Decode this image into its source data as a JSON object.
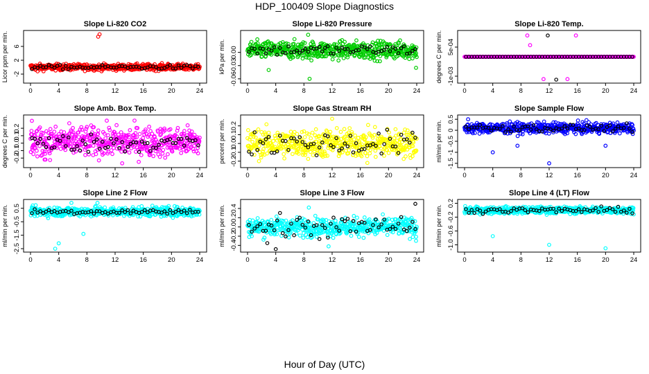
{
  "figure": {
    "title": "HDP_100409  Slope Diagnostics",
    "xlabel": "Hour of Day (UTC)"
  },
  "chart_data": [
    {
      "type": "scatter",
      "title": "Slope Li-820 CO2",
      "ylabel": "Licor ppm per min.",
      "xlim": [
        0,
        24
      ],
      "ylim": [
        -4,
        10
      ],
      "xticks": [
        "0",
        "4",
        "8",
        "12",
        "16",
        "20",
        "24"
      ],
      "yticks": [
        -2,
        2,
        6
      ],
      "ytick_labels": [
        "-2",
        "2",
        "6"
      ],
      "points_color": "#ff0000",
      "center": 0,
      "spread": 0.45,
      "black_center": 0,
      "black_spread": 0.3,
      "outliers": [
        [
          9.8,
          9.5
        ],
        [
          9.6,
          8.8
        ],
        [
          1.0,
          -1.2
        ],
        [
          19.5,
          1.0
        ]
      ]
    },
    {
      "type": "scatter",
      "title": "Slope Li-820 Pressure",
      "ylabel": "kPa per min.",
      "xlim": [
        0,
        24
      ],
      "ylim": [
        -0.065,
        0.045
      ],
      "xticks": [
        "0",
        "4",
        "8",
        "12",
        "16",
        "20",
        "24"
      ],
      "yticks": [
        -0.06,
        -0.03,
        0.0
      ],
      "ytick_labels": [
        "-0.06",
        "-0.03",
        "0.00"
      ],
      "points_color": "#00cc00",
      "center": 0.005,
      "spread": 0.01,
      "black_center": 0.005,
      "black_spread": 0.006,
      "outliers": [
        [
          8.6,
          0.04
        ],
        [
          8.8,
          -0.06
        ],
        [
          3.0,
          -0.04
        ],
        [
          23.9,
          -0.035
        ]
      ]
    },
    {
      "type": "scatter",
      "title": "Slope Li-820 Temp.",
      "ylabel": "degrees C per min.",
      "xlim": [
        0,
        24
      ],
      "ylim": [
        -0.00125,
        0.00125
      ],
      "xticks": [
        "0",
        "4",
        "8",
        "12",
        "16",
        "20",
        "24"
      ],
      "yticks": [
        -0.001,
        0.0005
      ],
      "ytick_labels": [
        "-1e-03",
        "5e-04"
      ],
      "points_color": "#ff00ff",
      "center": 0,
      "spread": 0.0,
      "black_center": 0,
      "black_spread": 0.0,
      "outliers": [
        [
          9.3,
          0.0006
        ],
        [
          11.2,
          -0.00115
        ],
        [
          14.6,
          -0.00115
        ],
        [
          15.8,
          0.0011
        ],
        [
          8.9,
          0.0011
        ]
      ],
      "black_outliers": [
        [
          11.8,
          0.0011
        ],
        [
          13.0,
          -0.00118
        ]
      ]
    },
    {
      "type": "scatter",
      "title": "Slope Amb. Box Temp.",
      "ylabel": "degrees C per min.",
      "xlim": [
        0,
        24
      ],
      "ylim": [
        -0.3,
        0.35
      ],
      "xticks": [
        "0",
        "4",
        "8",
        "12",
        "16",
        "20",
        "24"
      ],
      "yticks": [
        -0.2,
        -0.1,
        0.0,
        0.1,
        0.2
      ],
      "ytick_labels": [
        "-0.2",
        "-0.1",
        "0.0",
        "0.1",
        "0.2"
      ],
      "points_color": "#ff00ff",
      "center": 0.02,
      "spread": 0.1,
      "black_center": 0.0,
      "black_spread": 0.06,
      "outliers": [
        [
          0.2,
          0.3
        ],
        [
          2.0,
          -0.22
        ],
        [
          13.0,
          -0.27
        ]
      ]
    },
    {
      "type": "scatter",
      "title": "Slope Gas Stream RH",
      "ylabel": "percent per min.",
      "xlim": [
        0,
        24
      ],
      "ylim": [
        -0.25,
        0.3
      ],
      "xticks": [
        "0",
        "4",
        "8",
        "12",
        "16",
        "20",
        "24"
      ],
      "yticks": [
        -0.2,
        -0.1,
        0.0,
        0.1,
        0.2
      ],
      "ytick_labels": [
        "-0.2",
        "-0.1",
        "0.0",
        "0.1",
        "0.2"
      ],
      "points_color": "#ffff00",
      "center": 0.0,
      "spread": 0.08,
      "black_center": 0.0,
      "black_spread": 0.07,
      "outliers": [
        [
          12.0,
          0.28
        ],
        [
          17.0,
          -0.22
        ]
      ]
    },
    {
      "type": "scatter",
      "title": "Slope Sample Flow",
      "ylabel": "ml/min per min.",
      "xlim": [
        0,
        24
      ],
      "ylim": [
        -1.6,
        0.6
      ],
      "xticks": [
        "0",
        "4",
        "8",
        "12",
        "16",
        "20",
        "24"
      ],
      "yticks": [
        -1.5,
        -1.0,
        -0.5,
        0.0,
        0.5
      ],
      "ytick_labels": [
        "-1.5",
        "-1",
        "-0.5",
        "0",
        "0.5"
      ],
      "points_color": "#0000ff",
      "center": 0.1,
      "spread": 0.12,
      "black_center": 0.1,
      "black_spread": 0.08,
      "outliers": [
        [
          4.0,
          -1.0
        ],
        [
          12.0,
          -1.5
        ],
        [
          7.5,
          -0.7
        ],
        [
          20.0,
          -0.7
        ],
        [
          0.5,
          0.5
        ]
      ]
    },
    {
      "type": "scatter",
      "title": "Slope Line 2 Flow",
      "ylabel": "ml/min per min.",
      "xlim": [
        0,
        24
      ],
      "ylim": [
        -2.6,
        1.0
      ],
      "xticks": [
        "0",
        "4",
        "8",
        "12",
        "16",
        "20",
        "24"
      ],
      "yticks": [
        -2.5,
        -1.5,
        -0.5,
        0.5
      ],
      "ytick_labels": [
        "-2.5",
        "-1.5",
        "-0.5",
        "0.5"
      ],
      "points_color": "#00ffff",
      "center": 0.25,
      "spread": 0.18,
      "black_center": 0.25,
      "black_spread": 0.1,
      "outliers": [
        [
          3.5,
          -2.5
        ],
        [
          4.0,
          -2.1
        ],
        [
          7.5,
          -1.4
        ],
        [
          5.8,
          0.9
        ],
        [
          9.5,
          0.9
        ]
      ]
    },
    {
      "type": "scatter",
      "title": "Slope Line 3 Flow",
      "ylabel": "ml/min per min.",
      "xlim": [
        0,
        24
      ],
      "ylim": [
        -0.5,
        0.55
      ],
      "xticks": [
        "0",
        "4",
        "8",
        "12",
        "16",
        "20",
        "24"
      ],
      "yticks": [
        -0.4,
        -0.2,
        0.0,
        0.2,
        0.4
      ],
      "ytick_labels": [
        "-0.4",
        "-0.2",
        "0.0",
        "0.2",
        "0.4"
      ],
      "points_color": "#00ffff",
      "center": 0.0,
      "spread": 0.1,
      "black_center": 0.0,
      "black_spread": 0.12,
      "outliers": [
        [
          8.7,
          0.42
        ],
        [
          11.5,
          -0.42
        ],
        [
          23.9,
          -0.3
        ]
      ],
      "black_outliers": [
        [
          4.0,
          -0.48
        ],
        [
          2.8,
          -0.35
        ],
        [
          23.8,
          0.5
        ]
      ]
    },
    {
      "type": "scatter",
      "title": "Slope Line 4 (LT) Flow",
      "ylabel": "ml/min per min.",
      "xlim": [
        0,
        24
      ],
      "ylim": [
        -1.15,
        0.25
      ],
      "xticks": [
        "0",
        "4",
        "8",
        "12",
        "16",
        "20",
        "24"
      ],
      "yticks": [
        -1.0,
        -0.6,
        -0.2,
        0.2
      ],
      "ytick_labels": [
        "-1.0",
        "-0.6",
        "-0.2",
        "0.2"
      ],
      "points_color": "#00ffff",
      "center": 0.0,
      "spread": 0.05,
      "black_center": 0.0,
      "black_spread": 0.04,
      "outliers": [
        [
          4.0,
          -0.75
        ],
        [
          12.0,
          -1.0
        ],
        [
          20.0,
          -1.1
        ]
      ]
    }
  ]
}
